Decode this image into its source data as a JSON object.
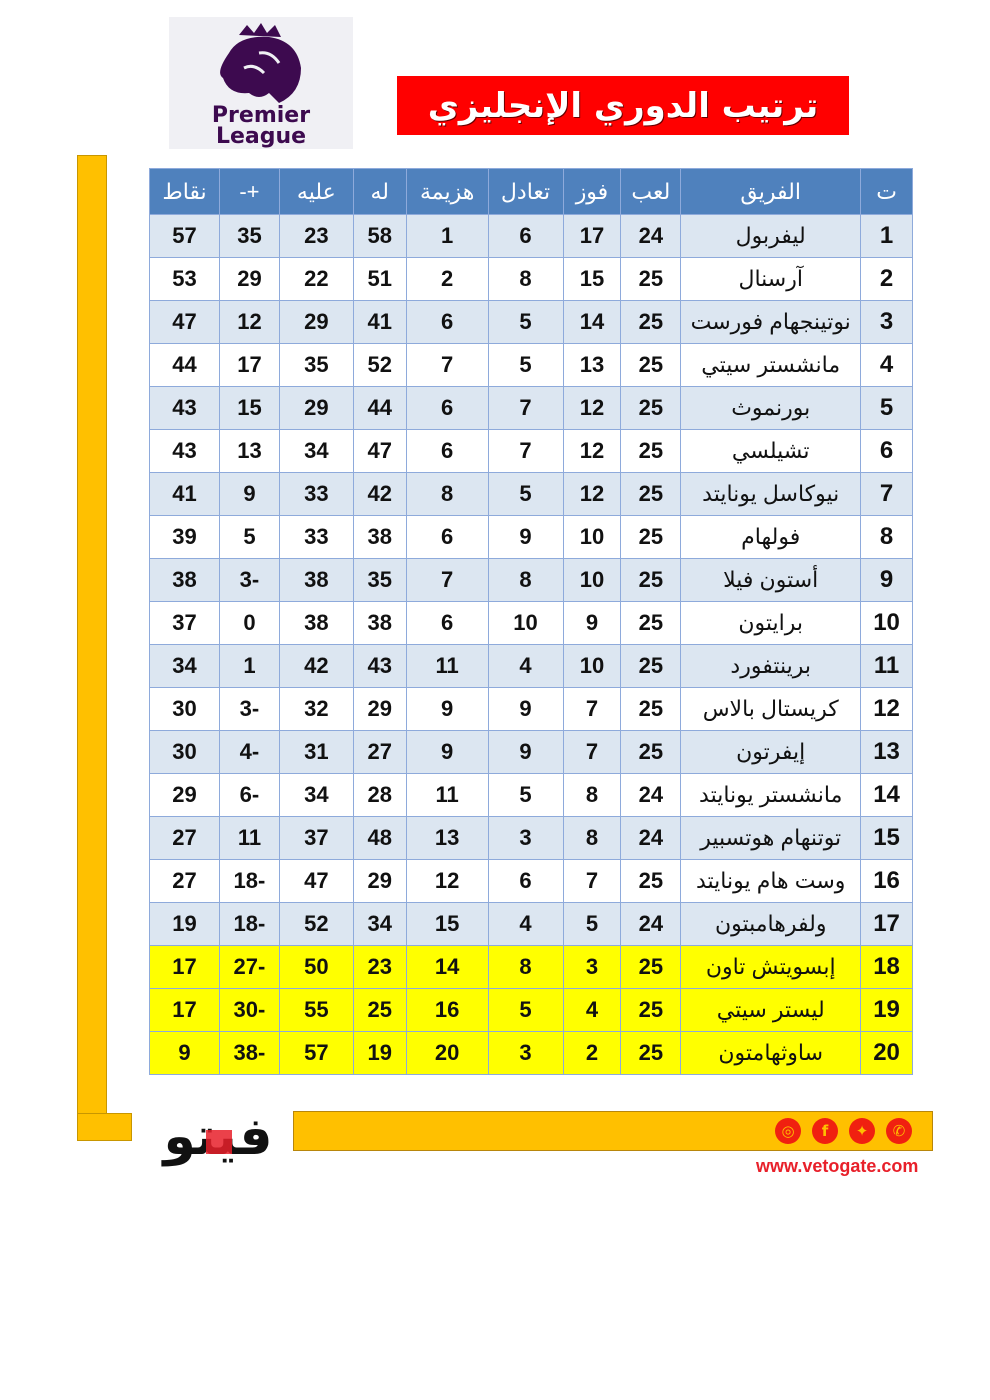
{
  "logo": {
    "text": "Premier League"
  },
  "title": "ترتيب الدوري الإنجليزي",
  "colors": {
    "header": "#4f81bd",
    "row_alt": "#dce6f1",
    "relegation": "#ffff00",
    "title_bg": "#ff0000",
    "accent": "#ffc000"
  },
  "table": {
    "headers": [
      "ت",
      "الفريق",
      "لعب",
      "فوز",
      "تعادل",
      "هزيمة",
      "له",
      "عليه",
      "+-",
      "نقاط"
    ],
    "rows": [
      [
        "1",
        "ليفربول",
        "24",
        "17",
        "6",
        "1",
        "58",
        "23",
        "35",
        "57"
      ],
      [
        "2",
        "آرسنال",
        "25",
        "15",
        "8",
        "2",
        "51",
        "22",
        "29",
        "53"
      ],
      [
        "3",
        "نوتينجهام فورست",
        "25",
        "14",
        "5",
        "6",
        "41",
        "29",
        "12",
        "47"
      ],
      [
        "4",
        "مانشستر سيتي",
        "25",
        "13",
        "5",
        "7",
        "52",
        "35",
        "17",
        "44"
      ],
      [
        "5",
        "بورنموث",
        "25",
        "12",
        "7",
        "6",
        "44",
        "29",
        "15",
        "43"
      ],
      [
        "6",
        "تشيلسي",
        "25",
        "12",
        "7",
        "6",
        "47",
        "34",
        "13",
        "43"
      ],
      [
        "7",
        "نيوكاسل يونايتد",
        "25",
        "12",
        "5",
        "8",
        "42",
        "33",
        "9",
        "41"
      ],
      [
        "8",
        "فولهام",
        "25",
        "10",
        "9",
        "6",
        "38",
        "33",
        "5",
        "39"
      ],
      [
        "9",
        "أستون فيلا",
        "25",
        "10",
        "8",
        "7",
        "35",
        "38",
        "-3",
        "38"
      ],
      [
        "10",
        "برايتون",
        "25",
        "9",
        "10",
        "6",
        "38",
        "38",
        "0",
        "37"
      ],
      [
        "11",
        "برينتفورد",
        "25",
        "10",
        "4",
        "11",
        "43",
        "42",
        "1",
        "34"
      ],
      [
        "12",
        "كريستال بالاس",
        "25",
        "7",
        "9",
        "9",
        "29",
        "32",
        "-3",
        "30"
      ],
      [
        "13",
        "إيفرتون",
        "25",
        "7",
        "9",
        "9",
        "27",
        "31",
        "-4",
        "30"
      ],
      [
        "14",
        "مانشستر يونايتد",
        "24",
        "8",
        "5",
        "11",
        "28",
        "34",
        "-6",
        "29"
      ],
      [
        "15",
        "توتنهام هوتسبير",
        "24",
        "8",
        "3",
        "13",
        "48",
        "37",
        "11",
        "27"
      ],
      [
        "16",
        "وست هام يونايتد",
        "25",
        "7",
        "6",
        "12",
        "29",
        "47",
        "-18",
        "27"
      ],
      [
        "17",
        "ولفرهامبتون",
        "24",
        "5",
        "4",
        "15",
        "34",
        "52",
        "-18",
        "19"
      ],
      [
        "18",
        "إبسويتش تاون",
        "25",
        "3",
        "8",
        "14",
        "23",
        "50",
        "-27",
        "17"
      ],
      [
        "19",
        "ليستر سيتي",
        "25",
        "4",
        "5",
        "16",
        "25",
        "55",
        "-30",
        "17"
      ],
      [
        "20",
        "ساوثهامتون",
        "25",
        "2",
        "3",
        "20",
        "19",
        "57",
        "-38",
        "9"
      ]
    ]
  },
  "footer": {
    "brand": "فيتو",
    "url": "www.vetogate.com",
    "social_icons": [
      "instagram-icon",
      "facebook-icon",
      "twitter-icon",
      "whatsapp-icon"
    ]
  }
}
